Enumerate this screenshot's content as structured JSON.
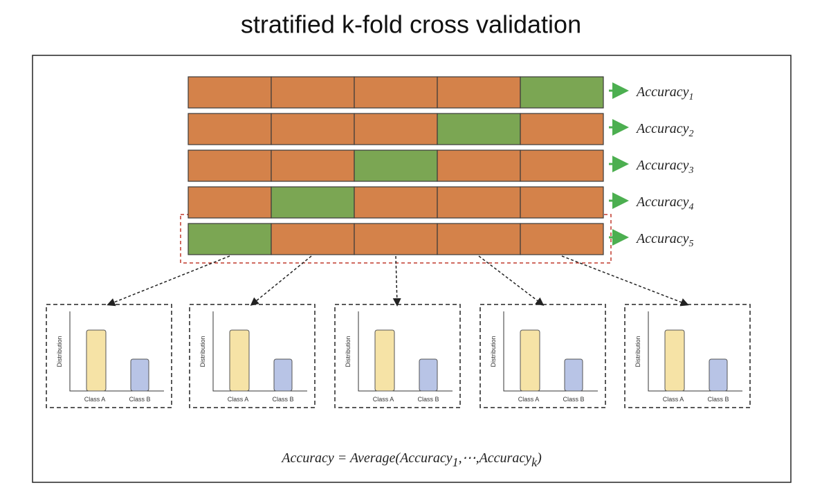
{
  "header": {
    "title": "stratified k-fold cross validation"
  },
  "folds": [
    {
      "label": "Accuracy",
      "sub": "1"
    },
    {
      "label": "Accuracy",
      "sub": "2"
    },
    {
      "label": "Accuracy",
      "sub": "3"
    },
    {
      "label": "Accuracy",
      "sub": "4"
    },
    {
      "label": "Accuracy",
      "sub": "5"
    }
  ],
  "panels": [
    {
      "y_label": "Distribution",
      "classes": [
        "Class A",
        "Class B"
      ]
    },
    {
      "y_label": "Distribution",
      "classes": [
        "Class A",
        "Class B"
      ]
    },
    {
      "y_label": "Distribution",
      "classes": [
        "Class A",
        "Class B"
      ]
    },
    {
      "y_label": "Distribution",
      "classes": [
        "Class A",
        "Class B"
      ]
    },
    {
      "y_label": "Distribution",
      "classes": [
        "Class A",
        "Class B"
      ]
    }
  ],
  "formula": [
    "Accuracy = Average(Accuracy",
    "1",
    ",⋯,Accuracy",
    "k",
    ")"
  ]
}
